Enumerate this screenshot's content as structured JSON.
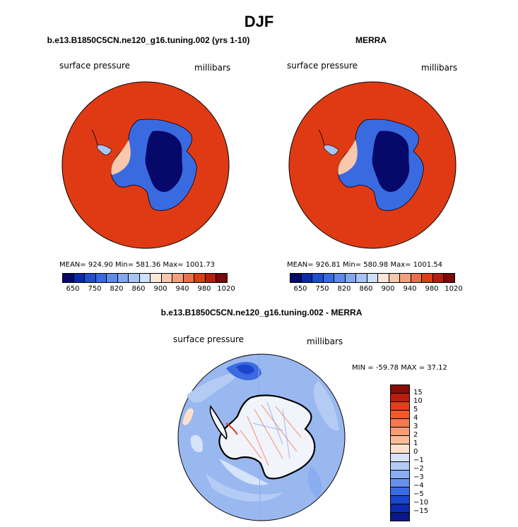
{
  "figure": {
    "title": "DJF"
  },
  "panels": [
    {
      "title": "b.e13.B1850C5CN.ne120_g16.tuning.002 (yrs 1-10)",
      "variable_label": "surface pressure",
      "units_label": "millibars",
      "stats": "MEAN= 924.90   Min= 581.36   Max= 1001.73",
      "ocean_color": "#e03a14"
    },
    {
      "title": "MERRA",
      "variable_label": "surface pressure",
      "units_label": "millibars",
      "stats": "MEAN= 926.81   Min= 580.98   Max= 1001.54",
      "ocean_color": "#e03a14"
    },
    {
      "title": "b.e13.B1850C5CN.ne120_g16.tuning.002 - MERRA",
      "variable_label": "surface pressure",
      "units_label": "millibars",
      "stats": "MIN = -59.78 MAX =  37.12",
      "ocean_color": "#9ab8f0"
    }
  ],
  "colorbar_abs": {
    "colors": [
      "#06086a",
      "#0a2aa8",
      "#1f4fd0",
      "#3a6ae0",
      "#5e8ae8",
      "#84a8f0",
      "#a8c4f4",
      "#cde0fa",
      "#fae6da",
      "#f8c7ac",
      "#f3a07e",
      "#ea6f4c",
      "#dd3c18",
      "#b81e0e",
      "#7c0808"
    ],
    "ticks": [
      "650",
      "750",
      "820",
      "860",
      "900",
      "940",
      "980",
      "1020"
    ]
  },
  "colorbar_diff": {
    "colors": [
      "#8a0a0a",
      "#b81e0e",
      "#e0401e",
      "#f05a2a",
      "#f47a50",
      "#f89c78",
      "#fabd9c",
      "#fce0cc",
      "#d6e4fa",
      "#b4ccf4",
      "#8aacf0",
      "#6890ea",
      "#3c6ae0",
      "#1a46cc",
      "#0a2ab0",
      "#061a8c"
    ],
    "ticks": [
      "15",
      "10",
      "5",
      "4",
      "3",
      "2",
      "1",
      "0",
      "−1",
      "−2",
      "−3",
      "−4",
      "−5",
      "−10",
      "−15"
    ]
  }
}
